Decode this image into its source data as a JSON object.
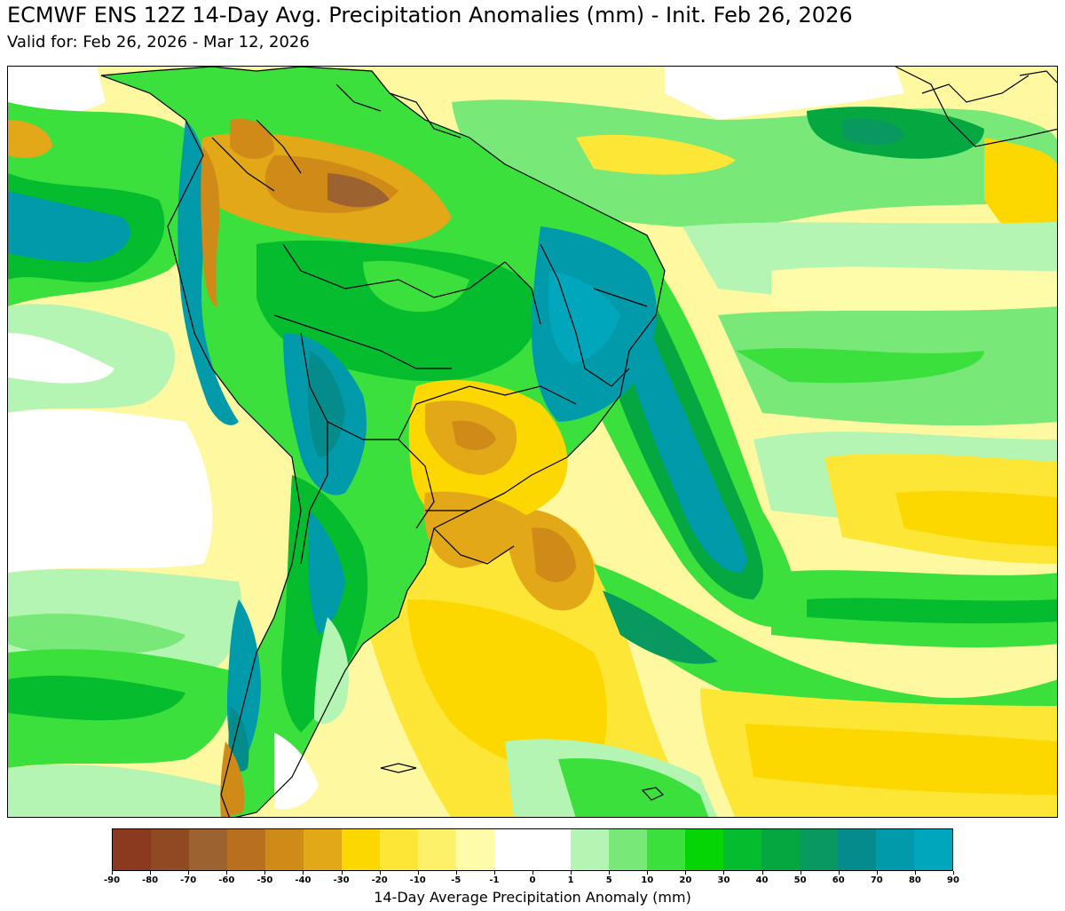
{
  "title": "ECMWF ENS 12Z 14-Day Avg. Precipitation Anomalies (mm) - Init. Feb 26, 2026",
  "subtitle": "Valid for: Feb 26, 2026 - Mar 12, 2026",
  "colorbar": {
    "label": "14-Day Average Precipitation Anomaly (mm)",
    "ticks": [
      "-90",
      "-80",
      "-70",
      "-60",
      "-50",
      "-40",
      "-30",
      "-20",
      "-10",
      "-5",
      "-1",
      "0",
      "1",
      "5",
      "10",
      "20",
      "30",
      "40",
      "50",
      "60",
      "70",
      "80",
      "90"
    ],
    "colors": [
      "#8b3a1f",
      "#8f4a22",
      "#9c6230",
      "#b8701e",
      "#d08a18",
      "#e2a818",
      "#fdd700",
      "#fde635",
      "#fdf16a",
      "#fefca8",
      "#ffffff",
      "#ffffff",
      "#b4f5b4",
      "#78e878",
      "#3ce03c",
      "#05d405",
      "#05bb2e",
      "#05a840",
      "#08995e",
      "#048c8c",
      "#019aaa",
      "#00a6bc"
    ]
  },
  "colors": {
    "ocean_base": "#fffbb0",
    "border": "#000000"
  }
}
